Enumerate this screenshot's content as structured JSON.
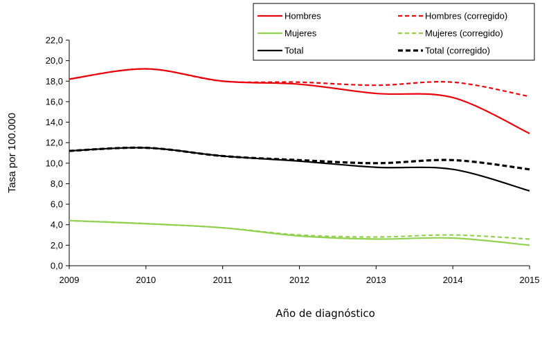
{
  "chart_data": {
    "type": "line",
    "xlabel": "Año de diagnóstico",
    "ylabel": "Tasa por 100.000",
    "x": [
      2009,
      2010,
      2011,
      2012,
      2013,
      2014,
      2015
    ],
    "x_tick_labels": [
      "2009",
      "2010",
      "2011",
      "2012",
      "2013",
      "2014",
      "2015"
    ],
    "ylim": [
      0,
      22
    ],
    "y_tick_labels": [
      "0,0",
      "2,0",
      "4,0",
      "6,0",
      "8,0",
      "10,0",
      "12,0",
      "14,0",
      "16,0",
      "18,0",
      "20,0",
      "22,0"
    ],
    "grid": false,
    "legend_position": "top-right",
    "series": [
      {
        "name": "Hombres",
        "color": "#e8000b",
        "dashed": false,
        "width": 2.2,
        "values": [
          18.2,
          19.2,
          18.0,
          17.7,
          16.8,
          16.4,
          12.9
        ]
      },
      {
        "name": "Hombres (corregido)",
        "color": "#e8000b",
        "dashed": true,
        "width": 2.2,
        "values": [
          18.2,
          19.2,
          18.0,
          17.9,
          17.6,
          17.9,
          16.5
        ]
      },
      {
        "name": "Mujeres",
        "color": "#92d050",
        "dashed": false,
        "width": 2.2,
        "values": [
          4.4,
          4.1,
          3.7,
          2.9,
          2.6,
          2.7,
          2.0
        ]
      },
      {
        "name": "Mujeres (corregido)",
        "color": "#92d050",
        "dashed": true,
        "width": 2.2,
        "values": [
          4.4,
          4.1,
          3.7,
          3.0,
          2.8,
          3.0,
          2.6
        ]
      },
      {
        "name": "Total",
        "color": "#000000",
        "dashed": false,
        "width": 2.2,
        "values": [
          11.2,
          11.5,
          10.7,
          10.2,
          9.6,
          9.4,
          7.3
        ]
      },
      {
        "name": "Total (corregido)",
        "color": "#000000",
        "dashed": true,
        "width": 3.2,
        "values": [
          11.2,
          11.5,
          10.7,
          10.3,
          10.0,
          10.3,
          9.4
        ]
      }
    ]
  }
}
